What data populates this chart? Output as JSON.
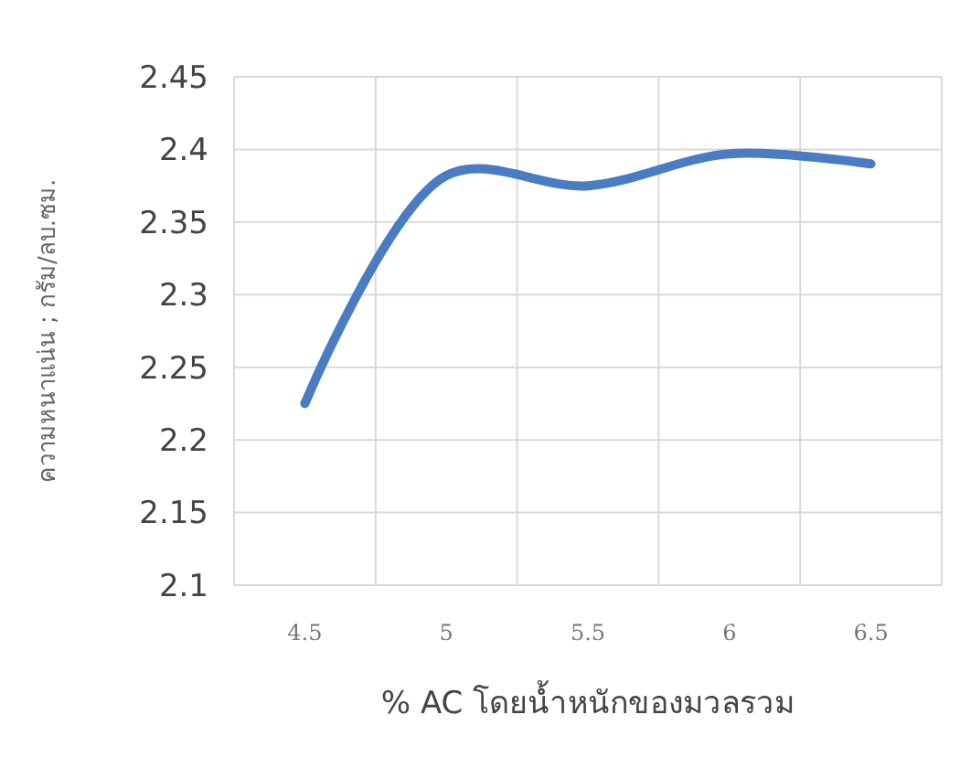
{
  "chart_data": {
    "type": "line",
    "xlabel": "% AC โดยน้ำหนักของมวลรวม",
    "ylabel": "ความหนาแน่น ; กรัม/ลบ.ซม.",
    "categories": [
      "4.5",
      "5",
      "5.5",
      "6",
      "6.5"
    ],
    "series": [
      {
        "color": "#4a7cc4",
        "values": [
          2.225,
          2.382,
          2.375,
          2.397,
          2.39
        ]
      }
    ],
    "ylim": [
      2.1,
      2.45
    ],
    "yticks": [
      2.1,
      2.15,
      2.2,
      2.25,
      2.3,
      2.35,
      2.4,
      2.45
    ],
    "grid": true,
    "marker": "none",
    "line_style": "solid"
  }
}
